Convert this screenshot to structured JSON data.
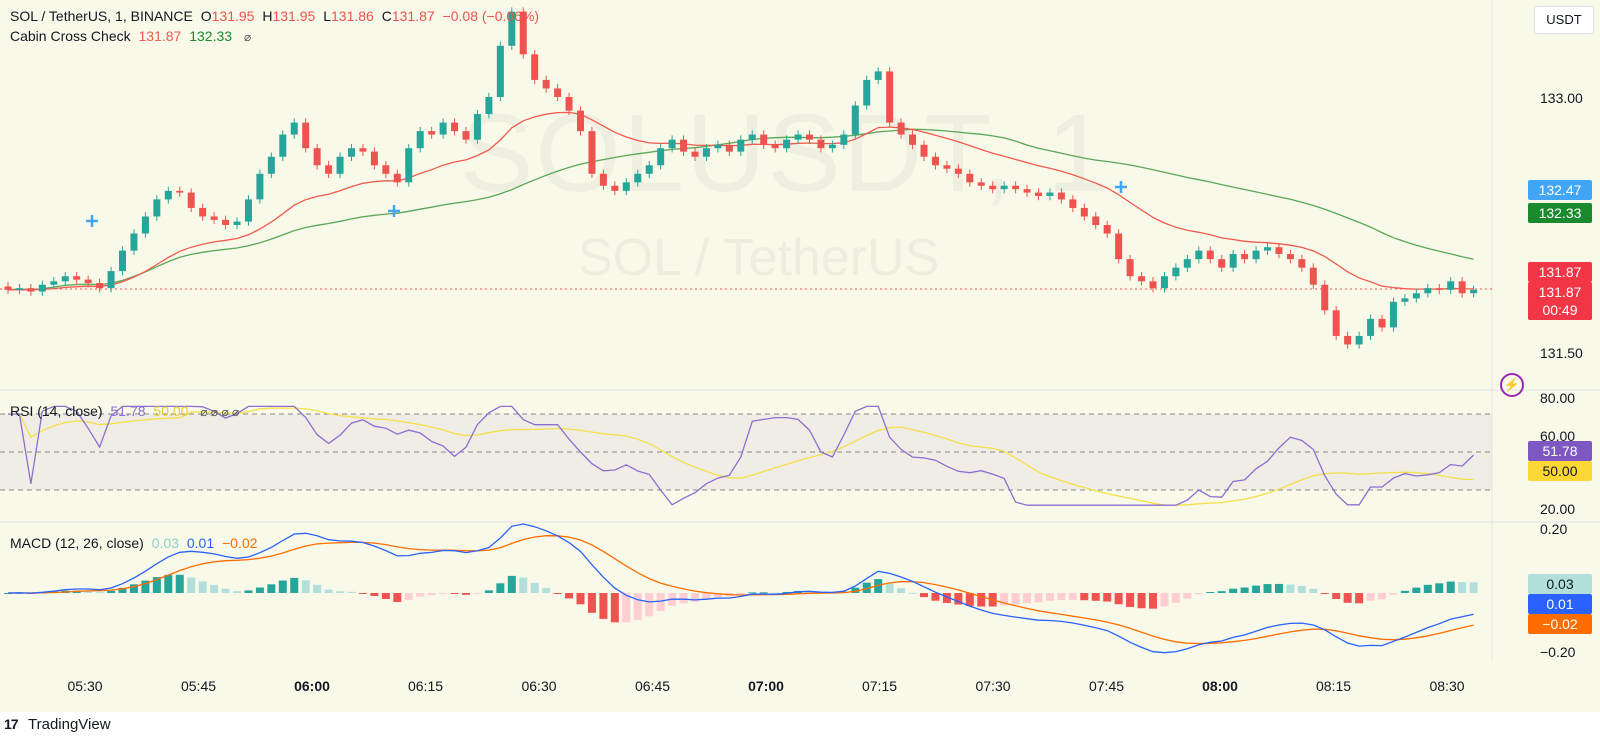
{
  "header": {
    "symbol": "SOL / TetherUS, 1, BINANCE",
    "o_label": "O",
    "o": "131.95",
    "h_label": "H",
    "h": "131.95",
    "l_label": "L",
    "l": "131.86",
    "c_label": "C",
    "c": "131.87",
    "change": "−0.08 (−0.06%)"
  },
  "indicator": {
    "name": "Cabin Cross Check",
    "v1": "131.87",
    "v2": "132.33",
    "icon": "eye-off-icon"
  },
  "currency_button": "USDT",
  "watermark": {
    "line1": "SOLUSDT, 1",
    "line2": "SOL / TetherUS"
  },
  "price_axis": [
    "133.00",
    "131.50"
  ],
  "price_tags": {
    "blue": "132.47",
    "green": "132.33",
    "red_price": "131.87",
    "red_price2": "131.87",
    "countdown": "00:49"
  },
  "rsi": {
    "name": "RSI (14, close)",
    "value": "51.78",
    "ma": "50.00",
    "axis": [
      "80.00",
      "60.00",
      "20.00"
    ],
    "tag_value": "51.78",
    "tag_ma": "50.00"
  },
  "macd": {
    "name": "MACD (12, 26, close)",
    "hist": "0.03",
    "macd": "0.01",
    "signal": "−0.02",
    "axis": [
      "0.20",
      "−0.20"
    ],
    "tag_hist": "0.03",
    "tag_macd": "0.01",
    "tag_signal": "−0.02"
  },
  "time_axis": [
    {
      "label": "05:30",
      "bold": false
    },
    {
      "label": "05:45",
      "bold": false
    },
    {
      "label": "06:00",
      "bold": true
    },
    {
      "label": "06:15",
      "bold": false
    },
    {
      "label": "06:30",
      "bold": false
    },
    {
      "label": "06:45",
      "bold": false
    },
    {
      "label": "07:00",
      "bold": true
    },
    {
      "label": "07:15",
      "bold": false
    },
    {
      "label": "07:30",
      "bold": false
    },
    {
      "label": "07:45",
      "bold": false
    },
    {
      "label": "08:00",
      "bold": true
    },
    {
      "label": "08:15",
      "bold": false
    },
    {
      "label": "08:30",
      "bold": false
    }
  ],
  "footer": {
    "brand": "TradingView"
  },
  "colors": {
    "up": "#26a69a",
    "down": "#ef5350",
    "bg": "#f8f9e9",
    "ma_fast": "#f05a4f",
    "ma_slow": "#5aa85a",
    "rsi": "#8b6fd1",
    "rsi_ma": "#f5e04a",
    "macd": "#2962ff",
    "signal": "#ff6d00",
    "tag_blue": "#42a5f5",
    "tag_green": "#1b8a2e"
  },
  "chart_data": {
    "type": "candlestick",
    "symbol": "SOL / TetherUS",
    "interval": "1",
    "x_start": "05:24",
    "x_step_minutes": 1,
    "closes": [
      131.87,
      131.88,
      131.86,
      131.9,
      131.92,
      131.95,
      131.93,
      131.91,
      131.88,
      131.98,
      132.1,
      132.2,
      132.3,
      132.4,
      132.45,
      132.44,
      132.35,
      132.3,
      132.28,
      132.25,
      132.27,
      132.4,
      132.55,
      132.65,
      132.78,
      132.85,
      132.7,
      132.6,
      132.55,
      132.65,
      132.7,
      132.68,
      132.6,
      132.55,
      132.5,
      132.7,
      132.8,
      132.78,
      132.85,
      132.8,
      132.75,
      132.9,
      133.0,
      133.3,
      133.5,
      133.25,
      133.1,
      133.05,
      133.0,
      132.92,
      132.8,
      132.55,
      132.48,
      132.45,
      132.5,
      132.55,
      132.6,
      132.7,
      132.75,
      132.68,
      132.65,
      132.7,
      132.72,
      132.68,
      132.75,
      132.78,
      132.72,
      132.7,
      132.75,
      132.78,
      132.75,
      132.7,
      132.72,
      132.78,
      132.95,
      133.1,
      133.15,
      132.85,
      132.78,
      132.72,
      132.65,
      132.6,
      132.58,
      132.55,
      132.5,
      132.48,
      132.46,
      132.48,
      132.46,
      132.44,
      132.42,
      132.44,
      132.4,
      132.35,
      132.3,
      132.25,
      132.2,
      132.05,
      131.95,
      131.92,
      131.88,
      131.95,
      132.0,
      132.05,
      132.1,
      132.05,
      132.0,
      132.08,
      132.05,
      132.1,
      132.12,
      132.08,
      132.05,
      132.0,
      131.9,
      131.75,
      131.6,
      131.55,
      131.6,
      131.7,
      131.65,
      131.8,
      131.82,
      131.85,
      131.88,
      131.87,
      131.92,
      131.85,
      131.87
    ]
  }
}
